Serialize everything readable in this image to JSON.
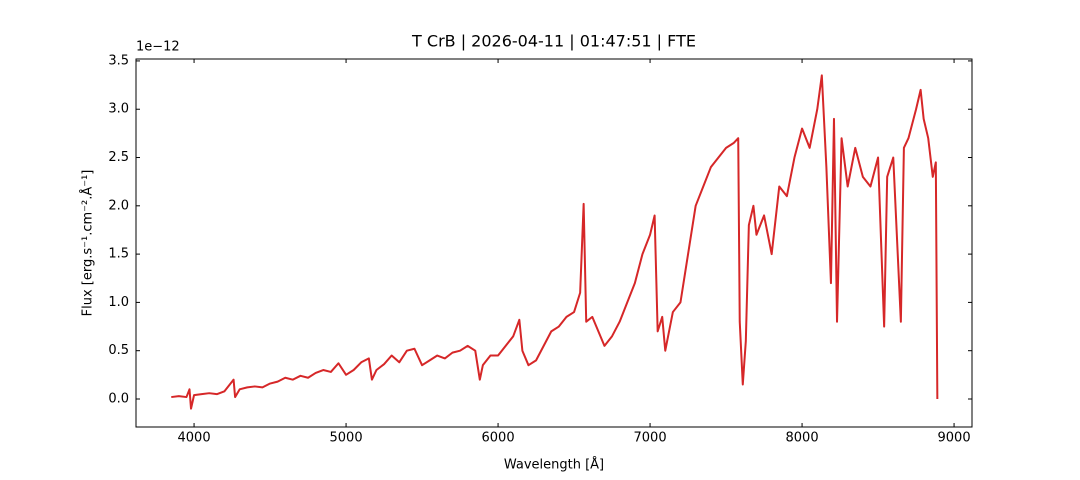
{
  "chart_data": {
    "type": "line",
    "title": "T CrB | 2026-04-11 | 01:47:51 | FTE",
    "x_label": "Wavelength [Å]",
    "y_label": "Flux [erg.s⁻¹.cm⁻².Å⁻¹]",
    "y_offset_label": "1e−12",
    "color": "#d62728",
    "xlim": [
      3618,
      9118
    ],
    "ylim": [
      -0.29,
      3.52
    ],
    "xticks": [
      4000,
      5000,
      6000,
      7000,
      8000,
      9000
    ],
    "yticks": [
      {
        "value": 0,
        "label": "0.0"
      },
      0.5,
      {
        "value": 1,
        "label": "1.0"
      },
      1.5,
      {
        "value": 2,
        "label": "2.0"
      },
      2.5,
      {
        "value": 3,
        "label": "3.0"
      },
      3.5
    ],
    "x": [
      3850,
      3900,
      3950,
      3970,
      3980,
      4000,
      4050,
      4100,
      4150,
      4200,
      4260,
      4270,
      4300,
      4350,
      4400,
      4450,
      4500,
      4550,
      4600,
      4650,
      4700,
      4750,
      4800,
      4850,
      4900,
      4950,
      5000,
      5050,
      5100,
      5150,
      5170,
      5200,
      5250,
      5300,
      5350,
      5400,
      5450,
      5500,
      5550,
      5600,
      5650,
      5700,
      5750,
      5800,
      5850,
      5880,
      5900,
      5950,
      6000,
      6050,
      6100,
      6140,
      6160,
      6200,
      6250,
      6300,
      6350,
      6400,
      6450,
      6500,
      6540,
      6563,
      6580,
      6620,
      6660,
      6700,
      6750,
      6800,
      6850,
      6900,
      6950,
      7000,
      7030,
      7050,
      7080,
      7100,
      7150,
      7200,
      7230,
      7260,
      7300,
      7350,
      7400,
      7450,
      7500,
      7550,
      7580,
      7590,
      7610,
      7630,
      7650,
      7680,
      7700,
      7750,
      7800,
      7850,
      7900,
      7950,
      8000,
      8050,
      8100,
      8130,
      8160,
      8190,
      8210,
      8230,
      8260,
      8300,
      8350,
      8400,
      8450,
      8500,
      8540,
      8560,
      8600,
      8650,
      8670,
      8700,
      8750,
      8780,
      8800,
      8830,
      8860,
      8880,
      8890
    ],
    "values": [
      0.02,
      0.03,
      0.02,
      0.1,
      -0.1,
      0.04,
      0.05,
      0.06,
      0.05,
      0.08,
      0.2,
      0.02,
      0.1,
      0.12,
      0.13,
      0.12,
      0.16,
      0.18,
      0.22,
      0.2,
      0.24,
      0.22,
      0.27,
      0.3,
      0.28,
      0.37,
      0.25,
      0.3,
      0.38,
      0.42,
      0.2,
      0.3,
      0.36,
      0.45,
      0.38,
      0.5,
      0.52,
      0.35,
      0.4,
      0.45,
      0.42,
      0.48,
      0.5,
      0.55,
      0.5,
      0.2,
      0.35,
      0.45,
      0.45,
      0.55,
      0.65,
      0.82,
      0.5,
      0.35,
      0.4,
      0.55,
      0.7,
      0.75,
      0.85,
      0.9,
      1.1,
      2.02,
      0.8,
      0.85,
      0.7,
      0.55,
      0.65,
      0.8,
      1.0,
      1.2,
      1.5,
      1.7,
      1.9,
      0.7,
      0.85,
      0.5,
      0.9,
      1.0,
      1.3,
      1.6,
      2.0,
      2.2,
      2.4,
      2.5,
      2.6,
      2.65,
      2.7,
      0.8,
      0.15,
      0.6,
      1.8,
      2.0,
      1.7,
      1.9,
      1.5,
      2.2,
      2.1,
      2.5,
      2.8,
      2.6,
      3.0,
      3.35,
      2.4,
      1.2,
      2.9,
      0.8,
      2.7,
      2.2,
      2.6,
      2.3,
      2.2,
      2.5,
      0.75,
      2.3,
      2.5,
      0.8,
      2.6,
      2.7,
      3.0,
      3.2,
      2.9,
      2.7,
      2.3,
      2.45,
      0.0
    ]
  }
}
